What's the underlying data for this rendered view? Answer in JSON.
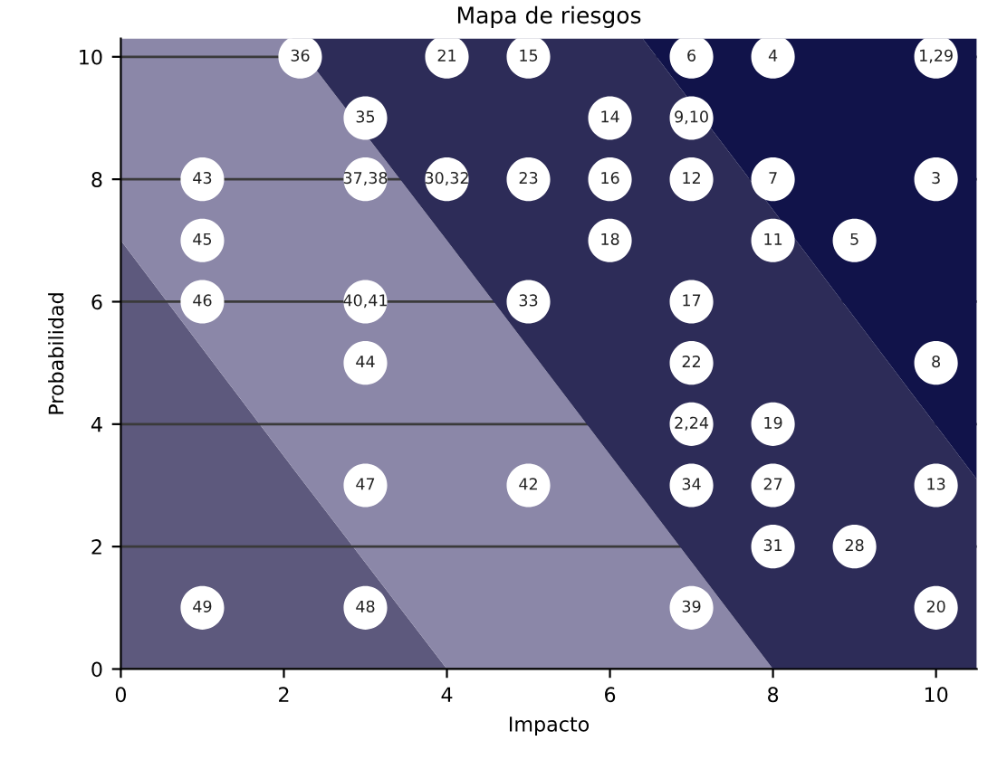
{
  "chart_data": {
    "type": "area",
    "stacked": true,
    "title": "Mapa de riesgos",
    "xlabel": "Impacto",
    "ylabel": "Probabilidad",
    "xlim": [
      0,
      10.5
    ],
    "ylim": [
      0,
      10.3
    ],
    "xticks": [
      0,
      2,
      4,
      6,
      8,
      10
    ],
    "yticks": [
      0,
      2,
      4,
      6,
      8,
      10
    ],
    "grid": "y",
    "x": [
      0,
      2.1,
      4,
      6.4,
      8,
      10.5
    ],
    "series": [
      {
        "color": "#5d597d",
        "values": [
          7,
          3.3,
          0,
          null,
          null,
          null
        ]
      },
      {
        "color": "#8b87a8",
        "values": [
          3.3,
          7,
          7,
          2.8,
          0,
          null
        ]
      },
      {
        "color": "#2d2c58",
        "values": [
          null,
          0,
          3.3,
          7.5,
          7.5,
          3.1
        ]
      },
      {
        "color": "#11134a",
        "values": [
          null,
          null,
          null,
          0,
          2.8,
          7.2
        ]
      },
      {
        "type": "scatter",
        "color": "#ffffff",
        "marker": "circle",
        "x": [
          2.2,
          4,
          5,
          7,
          8,
          10,
          3,
          6,
          7,
          1,
          3,
          4,
          5,
          6,
          7,
          8,
          10,
          1,
          6,
          8,
          9,
          1,
          3,
          5,
          7,
          3,
          7,
          10,
          7,
          8,
          3,
          5,
          7,
          8,
          10,
          8,
          9,
          1,
          3,
          7,
          10
        ],
        "values": [
          10,
          10,
          10,
          10,
          10,
          10,
          9,
          9,
          9,
          8,
          8,
          8,
          8,
          8,
          8,
          8,
          8,
          7,
          7,
          7,
          7,
          6,
          6,
          6,
          6,
          5,
          5,
          5,
          4,
          4,
          3,
          3,
          3,
          3,
          3,
          2,
          2,
          1,
          1,
          1,
          1
        ]
      }
    ],
    "annotations": [
      {
        "text": "36",
        "x": 2.2,
        "y": 10
      },
      {
        "text": "21",
        "x": 4,
        "y": 10
      },
      {
        "text": "15",
        "x": 5,
        "y": 10
      },
      {
        "text": "6",
        "x": 7,
        "y": 10
      },
      {
        "text": "4",
        "x": 8,
        "y": 10
      },
      {
        "text": "1,29",
        "x": 10,
        "y": 10
      },
      {
        "text": "35",
        "x": 3,
        "y": 9
      },
      {
        "text": "14",
        "x": 6,
        "y": 9
      },
      {
        "text": "9,10",
        "x": 7,
        "y": 9
      },
      {
        "text": "43",
        "x": 1,
        "y": 8
      },
      {
        "text": "37,38",
        "x": 3,
        "y": 8
      },
      {
        "text": "30,32",
        "x": 4,
        "y": 8
      },
      {
        "text": "23",
        "x": 5,
        "y": 8
      },
      {
        "text": "16",
        "x": 6,
        "y": 8
      },
      {
        "text": "12",
        "x": 7,
        "y": 8
      },
      {
        "text": "7",
        "x": 8,
        "y": 8
      },
      {
        "text": "3",
        "x": 10,
        "y": 8
      },
      {
        "text": "45",
        "x": 1,
        "y": 7
      },
      {
        "text": "18",
        "x": 6,
        "y": 7
      },
      {
        "text": "11",
        "x": 8,
        "y": 7
      },
      {
        "text": "5",
        "x": 9,
        "y": 7
      },
      {
        "text": "46",
        "x": 1,
        "y": 6
      },
      {
        "text": "40,41",
        "x": 3,
        "y": 6
      },
      {
        "text": "33",
        "x": 5,
        "y": 6
      },
      {
        "text": "17",
        "x": 7,
        "y": 6
      },
      {
        "text": "44",
        "x": 3,
        "y": 5
      },
      {
        "text": "22",
        "x": 7,
        "y": 5
      },
      {
        "text": "8",
        "x": 10,
        "y": 5
      },
      {
        "text": "2,24",
        "x": 7,
        "y": 4
      },
      {
        "text": "19",
        "x": 8,
        "y": 4
      },
      {
        "text": "47",
        "x": 3,
        "y": 3
      },
      {
        "text": "42",
        "x": 5,
        "y": 3
      },
      {
        "text": "34",
        "x": 7,
        "y": 3
      },
      {
        "text": "27",
        "x": 8,
        "y": 3
      },
      {
        "text": "13",
        "x": 10,
        "y": 3
      },
      {
        "text": "31",
        "x": 8,
        "y": 2
      },
      {
        "text": "28",
        "x": 9,
        "y": 2
      },
      {
        "text": "49",
        "x": 1,
        "y": 1
      },
      {
        "text": "48",
        "x": 3,
        "y": 1
      },
      {
        "text": "39",
        "x": 7,
        "y": 1
      },
      {
        "text": "20",
        "x": 10,
        "y": 1
      }
    ]
  }
}
